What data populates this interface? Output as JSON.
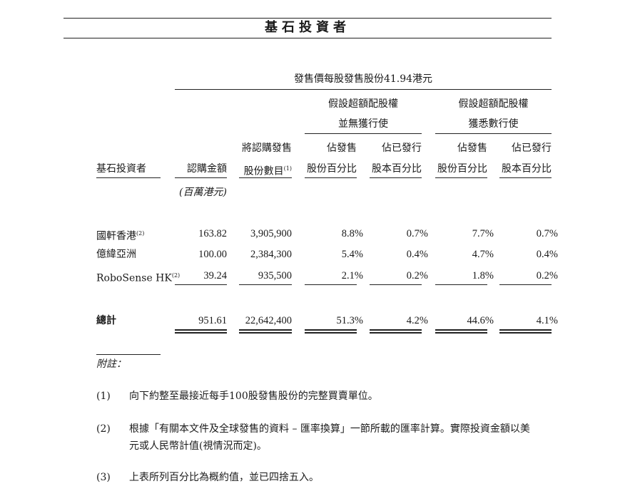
{
  "section_title": "基石投資者",
  "table": {
    "price_header": "發售價每股發售股份41.94港元",
    "group_no_exercise": [
      "假設超額配股權",
      "並無獲行使"
    ],
    "group_full_exercise": [
      "假設超額配股權",
      "獲悉數行使"
    ],
    "columns": [
      {
        "line1": "",
        "line2": "基石投資者"
      },
      {
        "line1": "",
        "line2": "認購金額"
      },
      {
        "line1": "將認購發售",
        "line2": "股份數目",
        "note": "(1)"
      },
      {
        "line1": "佔發售",
        "line2": "股份百分比"
      },
      {
        "line1": "佔已發行",
        "line2": "股本百分比"
      },
      {
        "line1": "佔發售",
        "line2": "股份百分比"
      },
      {
        "line1": "佔已發行",
        "line2": "股本百分比"
      }
    ],
    "unit": "(百萬港元)",
    "rows": [
      {
        "name": "國軒香港",
        "note": "(2)",
        "amount": "163.82",
        "shares": "3,905,900",
        "offer_pct_no": "8.8%",
        "issued_pct_no": "0.7%",
        "offer_pct_full": "7.7%",
        "issued_pct_full": "0.7%"
      },
      {
        "name": "億緯亞洲",
        "note": "",
        "amount": "100.00",
        "shares": "2,384,300",
        "offer_pct_no": "5.4%",
        "issued_pct_no": "0.4%",
        "offer_pct_full": "4.7%",
        "issued_pct_full": "0.4%"
      },
      {
        "name": "RoboSense HK",
        "note": "(2)",
        "amount": "39.24",
        "shares": "935,500",
        "offer_pct_no": "2.1%",
        "issued_pct_no": "0.2%",
        "offer_pct_full": "1.8%",
        "issued_pct_full": "0.2%"
      }
    ],
    "total": {
      "name": "總計",
      "amount": "951.61",
      "shares": "22,642,400",
      "offer_pct_no": "51.3%",
      "issued_pct_no": "4.2%",
      "offer_pct_full": "44.6%",
      "issued_pct_full": "4.1%"
    }
  },
  "notes": {
    "heading": "附註：",
    "items": [
      {
        "marker": "(1)",
        "lines": [
          "向下約整至最接近每手100股發售股份的完整買賣單位。"
        ]
      },
      {
        "marker": "(2)",
        "lines": [
          "根據「有關本文件及全球發售的資料 – 匯率換算」一節所載的匯率計算。實際投資金額以美",
          "元或人民幣計值(視情況而定)。"
        ]
      },
      {
        "marker": "(3)",
        "lines": [
          "上表所列百分比為概約值，並已四捨五入。"
        ]
      }
    ]
  }
}
